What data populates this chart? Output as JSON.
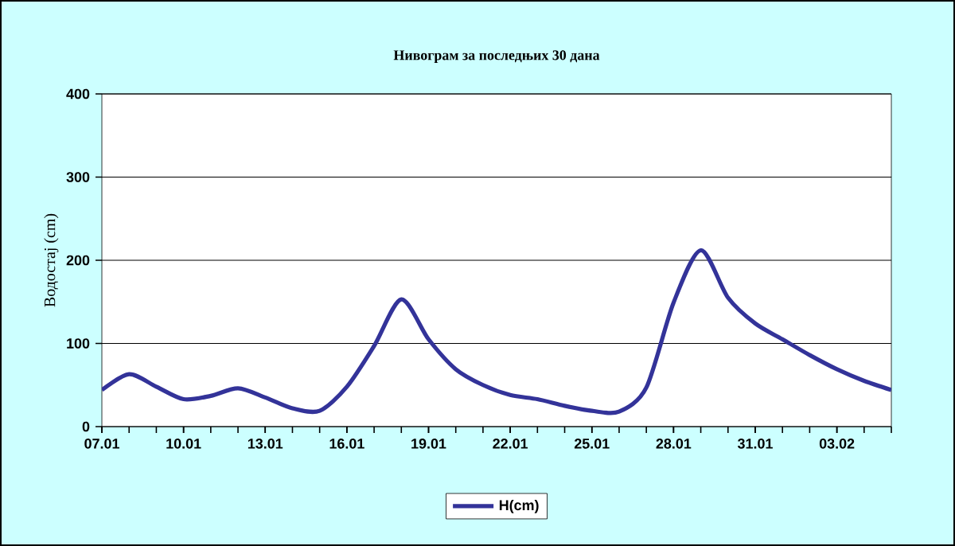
{
  "chart_data": {
    "type": "line",
    "title": "Нивограм за последњих 30 дана",
    "ylabel": "Водостај (cm)",
    "categories": [
      "07.01",
      null,
      null,
      "10.01",
      null,
      null,
      "13.01",
      null,
      null,
      "16.01",
      null,
      null,
      "19.01",
      null,
      null,
      "22.01",
      null,
      null,
      "25.01",
      null,
      null,
      "28.01",
      null,
      null,
      "31.01",
      null,
      null,
      "03.02",
      null,
      null
    ],
    "series": [
      {
        "name": "H(cm)",
        "color": "#333399",
        "values": [
          44,
          63,
          48,
          33,
          37,
          46,
          35,
          22,
          19,
          48,
          97,
          153,
          105,
          69,
          50,
          38,
          33,
          25,
          19,
          18,
          47,
          149,
          212,
          155,
          124,
          105,
          86,
          69,
          55,
          44
        ]
      }
    ],
    "ylim": [
      0,
      400
    ],
    "yticks": [
      0,
      100,
      200,
      300,
      400
    ],
    "grid": "y",
    "legend": "bottom",
    "marker": "none",
    "line_style": "solid"
  }
}
